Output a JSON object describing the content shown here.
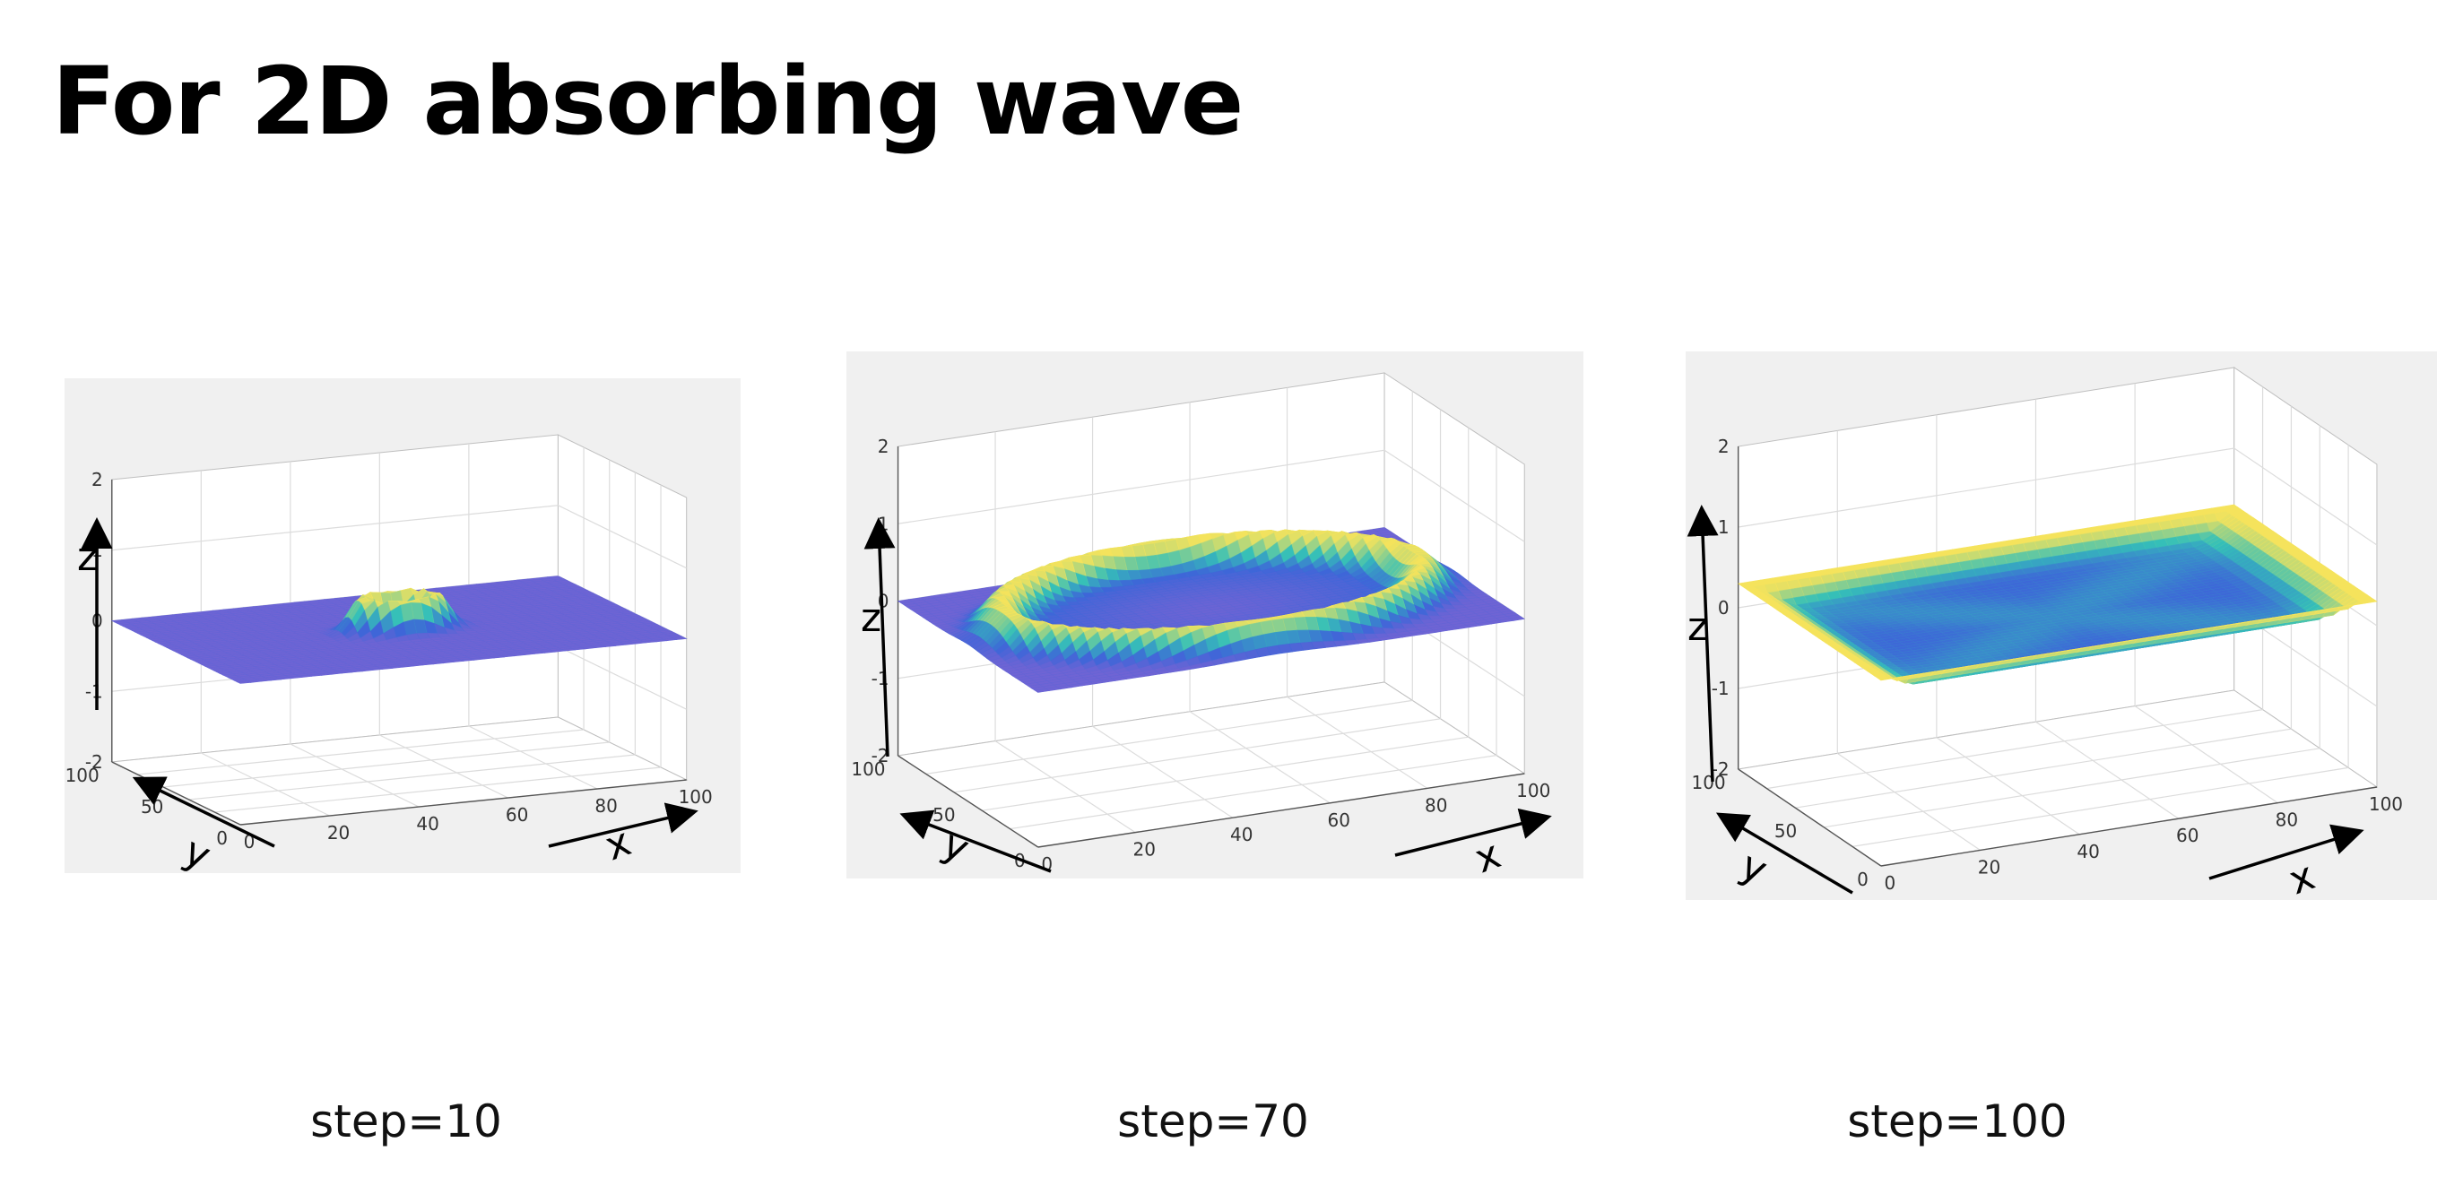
{
  "slide": {
    "title": "For 2D absorbing wave"
  },
  "colors": {
    "base": "#6f64d4",
    "low": "#3d66d8",
    "mid": "#35c0b8",
    "high": "#f5e35c",
    "grid": "#dcdcdc",
    "panel": "#f0f0f0"
  },
  "chart_data": [
    {
      "type": "surface",
      "caption": "step=10",
      "x_label": "x",
      "y_label": "y",
      "z_label": "z",
      "x_ticks": [
        "0",
        "20",
        "40",
        "60",
        "80",
        "100"
      ],
      "y_ticks": [
        "0",
        "50",
        "100"
      ],
      "z_ticks": [
        "-2",
        "-1",
        "0",
        "1",
        "2"
      ],
      "x_range": [
        0,
        100
      ],
      "y_range": [
        0,
        100
      ],
      "z_range": [
        -2,
        2
      ],
      "feature": "ring",
      "ring_radius": 8,
      "peak_z": 0.5
    },
    {
      "type": "surface",
      "caption": "step=70",
      "x_label": "x",
      "y_label": "y",
      "z_label": "z",
      "x_ticks": [
        "0",
        "20",
        "40",
        "60",
        "80",
        "100"
      ],
      "y_ticks": [
        "0",
        "50",
        "100"
      ],
      "z_ticks": [
        "-2",
        "-1",
        "0",
        "1",
        "2"
      ],
      "x_range": [
        0,
        100
      ],
      "y_range": [
        0,
        100
      ],
      "z_range": [
        -2,
        2
      ],
      "feature": "ring",
      "ring_radius": 42,
      "peak_z": 0.4
    },
    {
      "type": "surface",
      "caption": "step=100",
      "x_label": "x",
      "y_label": "y",
      "z_label": "z",
      "x_ticks": [
        "0",
        "20",
        "40",
        "60",
        "80",
        "100"
      ],
      "y_ticks": [
        "0",
        "50",
        "100"
      ],
      "z_ticks": [
        "-2",
        "-1",
        "0",
        "1",
        "2"
      ],
      "x_range": [
        0,
        100
      ],
      "y_range": [
        0,
        100
      ],
      "z_range": [
        -2,
        2
      ],
      "feature": "edges",
      "peak_z": 0.3
    }
  ]
}
